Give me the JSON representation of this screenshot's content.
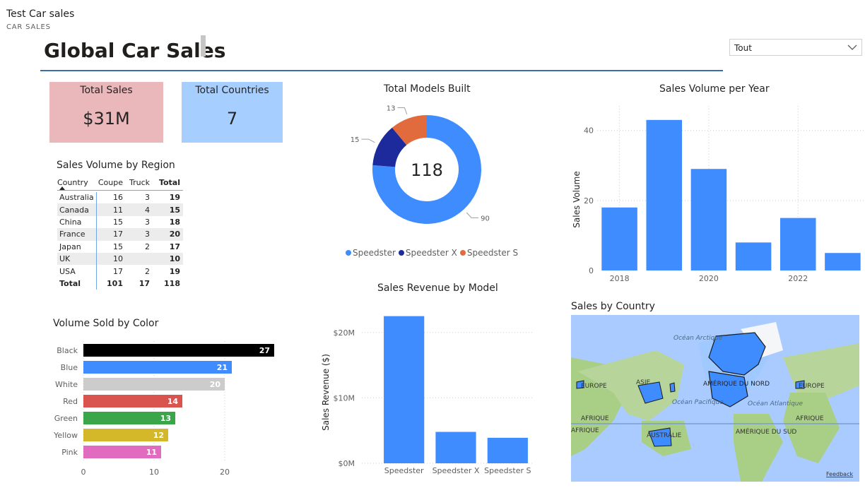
{
  "report": {
    "name": "Test Car sales",
    "subtitle": "CAR SALES"
  },
  "page_title": "Global Car Sales",
  "slicer": {
    "value": "Tout"
  },
  "cards": [
    {
      "label": "Total Sales",
      "value": "$31M",
      "bg": "#eab7bb"
    },
    {
      "label": "Total Countries",
      "value": "7",
      "bg": "#a6cfff"
    }
  ],
  "region_table": {
    "title": "Sales Volume by Region",
    "headers": [
      "Country",
      "Coupe",
      "Truck",
      "Total"
    ],
    "rows": [
      [
        "Australia",
        "16",
        "3",
        "19"
      ],
      [
        "Canada",
        "11",
        "4",
        "15"
      ],
      [
        "China",
        "15",
        "3",
        "18"
      ],
      [
        "France",
        "17",
        "3",
        "20"
      ],
      [
        "Japan",
        "15",
        "2",
        "17"
      ],
      [
        "UK",
        "10",
        "",
        "10"
      ],
      [
        "USA",
        "17",
        "2",
        "19"
      ]
    ],
    "total": [
      "Total",
      "101",
      "17",
      "118"
    ]
  },
  "colors": {
    "blue": "#3f8cff",
    "navy": "#1c2a9c",
    "orange": "#e16b3c"
  },
  "chart_data": [
    {
      "type": "pie",
      "title": "Total Models Built",
      "center_label": "118",
      "categories": [
        "Speedster",
        "Speedster X",
        "Speedster S"
      ],
      "values": [
        90,
        15,
        13
      ],
      "colors": [
        "#3f8cff",
        "#1c2a9c",
        "#e16b3c"
      ],
      "legend_placement": "bottom"
    },
    {
      "type": "bar",
      "title": "Sales Volume per Year",
      "x": [
        2018,
        2019,
        2020,
        2021,
        2022,
        2023
      ],
      "values": [
        18,
        43,
        29,
        8,
        15,
        5
      ],
      "xticks": [
        "2018",
        "2020",
        "2022"
      ],
      "yticks": [
        "0",
        "20",
        "40"
      ],
      "ylabel": "Sales Volume",
      "ylim": [
        0,
        47
      ],
      "grid": true
    },
    {
      "type": "bar",
      "orientation": "horizontal",
      "title": "Volume Sold by Color",
      "categories": [
        "Black",
        "Blue",
        "White",
        "Red",
        "Green",
        "Yellow",
        "Pink"
      ],
      "values": [
        27,
        21,
        20,
        14,
        13,
        12,
        11
      ],
      "colors": [
        "#000000",
        "#3f8cff",
        "#cccccc",
        "#d9534f",
        "#3aa64a",
        "#d4b82a",
        "#e06bbf"
      ],
      "xticks": [
        "0",
        "10",
        "20"
      ],
      "xlim": [
        0,
        28
      ]
    },
    {
      "type": "bar",
      "title": "Sales Revenue by Model",
      "categories": [
        "Speedster",
        "Speedster X",
        "Speedster S"
      ],
      "values": [
        22.5,
        4.8,
        3.9
      ],
      "yticks": [
        "$0M",
        "$10M",
        "$20M"
      ],
      "ylabel": "Sales Revenue ($)",
      "ylim": [
        0,
        23
      ],
      "grid": true
    }
  ],
  "map": {
    "title": "Sales by Country",
    "labels": [
      "Océan Arctique",
      "EUROPE",
      "ASIE",
      "AMÉRIQUE DU NORD",
      "EUROPE",
      "Océan Pacifique",
      "Océan Atlantique",
      "AFRIQUE",
      "AFRIQUE",
      "AFRIQUE",
      "AUSTRALIE",
      "AMÉRIQUE DU SUD"
    ],
    "feedback": "Feedback"
  }
}
